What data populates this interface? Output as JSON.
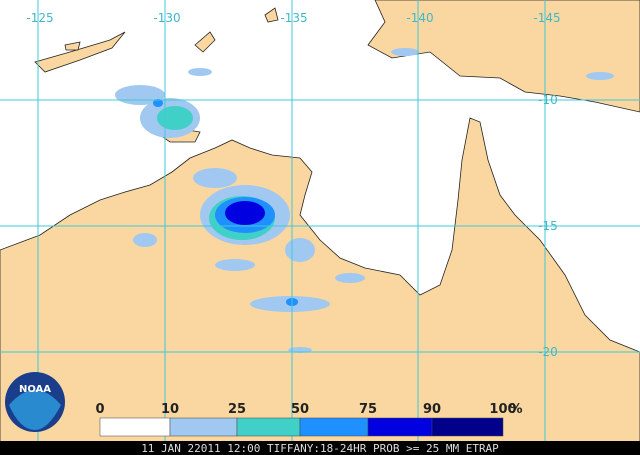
{
  "map": {
    "lon_labels": [
      -125,
      -130,
      -135,
      -140,
      -145
    ],
    "lat_labels": [
      -10,
      -15,
      -20
    ],
    "legend": {
      "labels": [
        0,
        10,
        25,
        50,
        75,
        90,
        100
      ],
      "unit": "%",
      "colors": [
        "#ffffff",
        "#a0c8f0",
        "#40d0c8",
        "#1e90ff",
        "#0000e0",
        "#00008b"
      ]
    },
    "logo": "NOAA",
    "caption": "11 JAN 22011 12:00 TIFFANY:18-24HR PROB >= 25 MM ETRAP"
  }
}
